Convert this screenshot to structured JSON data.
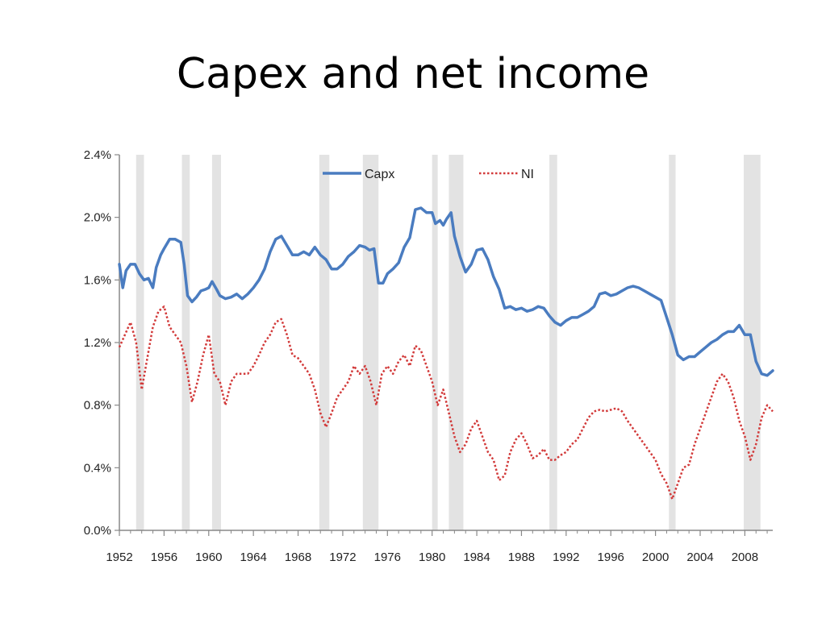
{
  "slide": {
    "title": "Capex and net income"
  },
  "colors": {
    "capx": "#4a7cc0",
    "ni": "#d23a3a",
    "recession": "#e3e3e3",
    "axis": "#888888"
  },
  "chart_data": {
    "type": "line",
    "title": "Capex and net income",
    "xlabel": "",
    "ylabel": "",
    "xlim": [
      1952,
      2010.5
    ],
    "ylim": [
      0,
      2.4
    ],
    "yticks": [
      0,
      0.4,
      0.8,
      1.2,
      1.6,
      2.0,
      2.4
    ],
    "ytick_labels": [
      "0.0%",
      "0.4%",
      "0.8%",
      "1.2%",
      "1.6%",
      "2.0%",
      "2.4%"
    ],
    "xticks": [
      1952,
      1956,
      1960,
      1964,
      1968,
      1972,
      1976,
      1980,
      1984,
      1988,
      1992,
      1996,
      2000,
      2004,
      2008
    ],
    "xtick_labels": [
      "1952",
      "1956",
      "1960",
      "1964",
      "1968",
      "1972",
      "1976",
      "1980",
      "1984",
      "1988",
      "1992",
      "1996",
      "2000",
      "2004",
      "2008"
    ],
    "legend": {
      "position": "top-center",
      "entries": [
        "Capx",
        "NI"
      ]
    },
    "recessions": [
      [
        1953.5,
        1954.2
      ],
      [
        1957.6,
        1958.3
      ],
      [
        1960.3,
        1961.1
      ],
      [
        1969.9,
        1970.8
      ],
      [
        1973.8,
        1975.2
      ],
      [
        1980.0,
        1980.5
      ],
      [
        1981.5,
        1982.8
      ],
      [
        1990.5,
        1991.2
      ],
      [
        2001.2,
        2001.8
      ],
      [
        2007.9,
        2009.4
      ]
    ],
    "series": [
      {
        "name": "Capx",
        "style": "solid",
        "x": [
          1952.0,
          1952.3,
          1952.6,
          1953.0,
          1953.4,
          1953.8,
          1954.2,
          1954.6,
          1955.0,
          1955.3,
          1955.7,
          1956.0,
          1956.5,
          1957.0,
          1957.5,
          1957.8,
          1958.1,
          1958.5,
          1958.9,
          1959.3,
          1959.7,
          1960.0,
          1960.3,
          1960.7,
          1961.0,
          1961.5,
          1962.0,
          1962.5,
          1963.0,
          1963.5,
          1964.0,
          1964.5,
          1965.0,
          1965.5,
          1966.0,
          1966.5,
          1967.0,
          1967.5,
          1968.0,
          1968.5,
          1969.0,
          1969.5,
          1970.0,
          1970.5,
          1971.0,
          1971.5,
          1972.0,
          1972.5,
          1973.0,
          1973.5,
          1974.0,
          1974.4,
          1974.8,
          1975.2,
          1975.6,
          1976.0,
          1976.5,
          1977.0,
          1977.5,
          1978.0,
          1978.5,
          1979.0,
          1979.5,
          1980.0,
          1980.3,
          1980.7,
          1981.0,
          1981.3,
          1981.7,
          1982.0,
          1982.5,
          1983.0,
          1983.5,
          1984.0,
          1984.5,
          1985.0,
          1985.5,
          1986.0,
          1986.5,
          1987.0,
          1987.5,
          1988.0,
          1988.5,
          1989.0,
          1989.5,
          1990.0,
          1990.5,
          1991.0,
          1991.5,
          1992.0,
          1992.5,
          1993.0,
          1993.5,
          1994.0,
          1994.5,
          1995.0,
          1995.5,
          1996.0,
          1996.5,
          1997.0,
          1997.5,
          1998.0,
          1998.5,
          1999.0,
          1999.5,
          2000.0,
          2000.5,
          2001.0,
          2001.5,
          2002.0,
          2002.5,
          2003.0,
          2003.5,
          2004.0,
          2004.5,
          2005.0,
          2005.5,
          2006.0,
          2006.5,
          2007.0,
          2007.5,
          2008.0,
          2008.5,
          2009.0,
          2009.5,
          2010.0,
          2010.5
        ],
        "values": [
          1.7,
          1.55,
          1.66,
          1.7,
          1.7,
          1.64,
          1.6,
          1.61,
          1.55,
          1.68,
          1.76,
          1.8,
          1.86,
          1.86,
          1.84,
          1.7,
          1.5,
          1.46,
          1.49,
          1.53,
          1.54,
          1.55,
          1.59,
          1.54,
          1.5,
          1.48,
          1.49,
          1.51,
          1.48,
          1.51,
          1.55,
          1.6,
          1.67,
          1.78,
          1.86,
          1.88,
          1.82,
          1.76,
          1.76,
          1.78,
          1.76,
          1.81,
          1.76,
          1.73,
          1.67,
          1.67,
          1.7,
          1.75,
          1.78,
          1.82,
          1.81,
          1.79,
          1.8,
          1.58,
          1.58,
          1.64,
          1.67,
          1.71,
          1.81,
          1.87,
          2.05,
          2.06,
          2.03,
          2.03,
          1.96,
          1.98,
          1.95,
          1.99,
          2.03,
          1.88,
          1.75,
          1.65,
          1.7,
          1.79,
          1.8,
          1.73,
          1.62,
          1.54,
          1.42,
          1.43,
          1.41,
          1.42,
          1.4,
          1.41,
          1.43,
          1.42,
          1.37,
          1.33,
          1.31,
          1.34,
          1.36,
          1.36,
          1.38,
          1.4,
          1.43,
          1.51,
          1.52,
          1.5,
          1.51,
          1.53,
          1.55,
          1.56,
          1.55,
          1.53,
          1.51,
          1.49,
          1.47,
          1.36,
          1.25,
          1.12,
          1.09,
          1.11,
          1.11,
          1.14,
          1.17,
          1.2,
          1.22,
          1.25,
          1.27,
          1.27,
          1.31,
          1.25,
          1.25,
          1.08,
          1.0,
          0.99,
          1.02
        ]
      },
      {
        "name": "NI",
        "style": "dotted",
        "x": [
          1952.0,
          1952.5,
          1953.0,
          1953.5,
          1954.0,
          1954.5,
          1955.0,
          1955.5,
          1956.0,
          1956.5,
          1957.0,
          1957.5,
          1958.0,
          1958.5,
          1959.0,
          1959.5,
          1960.0,
          1960.5,
          1961.0,
          1961.5,
          1962.0,
          1962.5,
          1963.0,
          1963.5,
          1964.0,
          1964.5,
          1965.0,
          1965.5,
          1966.0,
          1966.5,
          1967.0,
          1967.5,
          1968.0,
          1968.5,
          1969.0,
          1969.5,
          1970.0,
          1970.5,
          1971.0,
          1971.5,
          1972.0,
          1972.5,
          1973.0,
          1973.5,
          1974.0,
          1974.5,
          1975.0,
          1975.5,
          1976.0,
          1976.5,
          1977.0,
          1977.5,
          1978.0,
          1978.5,
          1979.0,
          1979.5,
          1980.0,
          1980.5,
          1981.0,
          1981.5,
          1982.0,
          1982.5,
          1983.0,
          1983.5,
          1984.0,
          1984.5,
          1985.0,
          1985.5,
          1986.0,
          1986.5,
          1987.0,
          1987.5,
          1988.0,
          1988.5,
          1989.0,
          1989.5,
          1990.0,
          1990.5,
          1991.0,
          1991.5,
          1992.0,
          1992.5,
          1993.0,
          1993.5,
          1994.0,
          1994.5,
          1995.0,
          1995.5,
          1996.0,
          1996.5,
          1997.0,
          1997.5,
          1998.0,
          1998.5,
          1999.0,
          1999.5,
          2000.0,
          2000.5,
          2001.0,
          2001.5,
          2002.0,
          2002.5,
          2003.0,
          2003.5,
          2004.0,
          2004.5,
          2005.0,
          2005.5,
          2006.0,
          2006.5,
          2007.0,
          2007.5,
          2008.0,
          2008.5,
          2009.0,
          2009.5,
          2010.0,
          2010.5
        ],
        "values": [
          1.17,
          1.25,
          1.33,
          1.2,
          0.9,
          1.1,
          1.3,
          1.4,
          1.43,
          1.3,
          1.25,
          1.2,
          1.05,
          0.82,
          0.95,
          1.12,
          1.25,
          1.0,
          0.95,
          0.8,
          0.95,
          1.0,
          1.0,
          1.0,
          1.05,
          1.12,
          1.2,
          1.25,
          1.33,
          1.35,
          1.25,
          1.12,
          1.1,
          1.05,
          1.0,
          0.9,
          0.75,
          0.66,
          0.75,
          0.85,
          0.9,
          0.95,
          1.05,
          1.0,
          1.05,
          0.95,
          0.8,
          1.0,
          1.05,
          1.0,
          1.08,
          1.12,
          1.05,
          1.18,
          1.15,
          1.05,
          0.95,
          0.8,
          0.9,
          0.75,
          0.6,
          0.5,
          0.55,
          0.65,
          0.7,
          0.6,
          0.5,
          0.45,
          0.32,
          0.35,
          0.5,
          0.58,
          0.62,
          0.55,
          0.46,
          0.48,
          0.52,
          0.45,
          0.45,
          0.48,
          0.5,
          0.55,
          0.58,
          0.65,
          0.72,
          0.76,
          0.77,
          0.76,
          0.77,
          0.78,
          0.76,
          0.7,
          0.65,
          0.6,
          0.55,
          0.5,
          0.45,
          0.36,
          0.3,
          0.2,
          0.3,
          0.4,
          0.42,
          0.55,
          0.65,
          0.75,
          0.85,
          0.95,
          1.0,
          0.95,
          0.85,
          0.7,
          0.6,
          0.45,
          0.55,
          0.72,
          0.8,
          0.76
        ]
      }
    ]
  }
}
